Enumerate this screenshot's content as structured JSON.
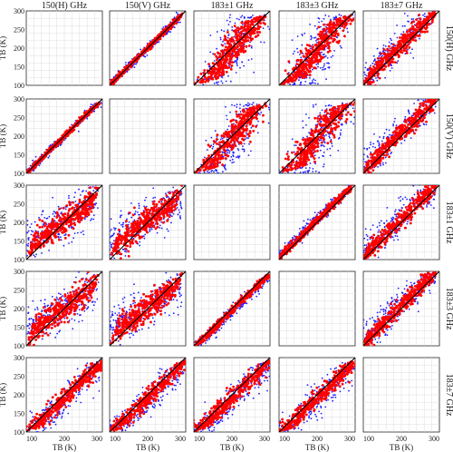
{
  "chart_data": {
    "type": "scatter",
    "layout": "5x5 scatter matrix",
    "channels": [
      "150(H) GHz",
      "150(V) GHz",
      "183±1 GHz",
      "183±3 GHz",
      "183±7 GHz"
    ],
    "xlabel": "TB (K)",
    "ylabel": "TB (K)",
    "xlim": [
      100,
      300
    ],
    "ylim": [
      100,
      300
    ],
    "x_ticks": [
      "100",
      "200",
      "300"
    ],
    "y_ticks": [
      "100",
      "150",
      "200",
      "250",
      "300"
    ],
    "diagonal_panels_empty": true,
    "reference_line": "1:1 line (y = x)",
    "grid": true,
    "series": [
      {
        "color": "#1f1fff"
      },
      {
        "color": "#ff0000"
      }
    ]
  }
}
